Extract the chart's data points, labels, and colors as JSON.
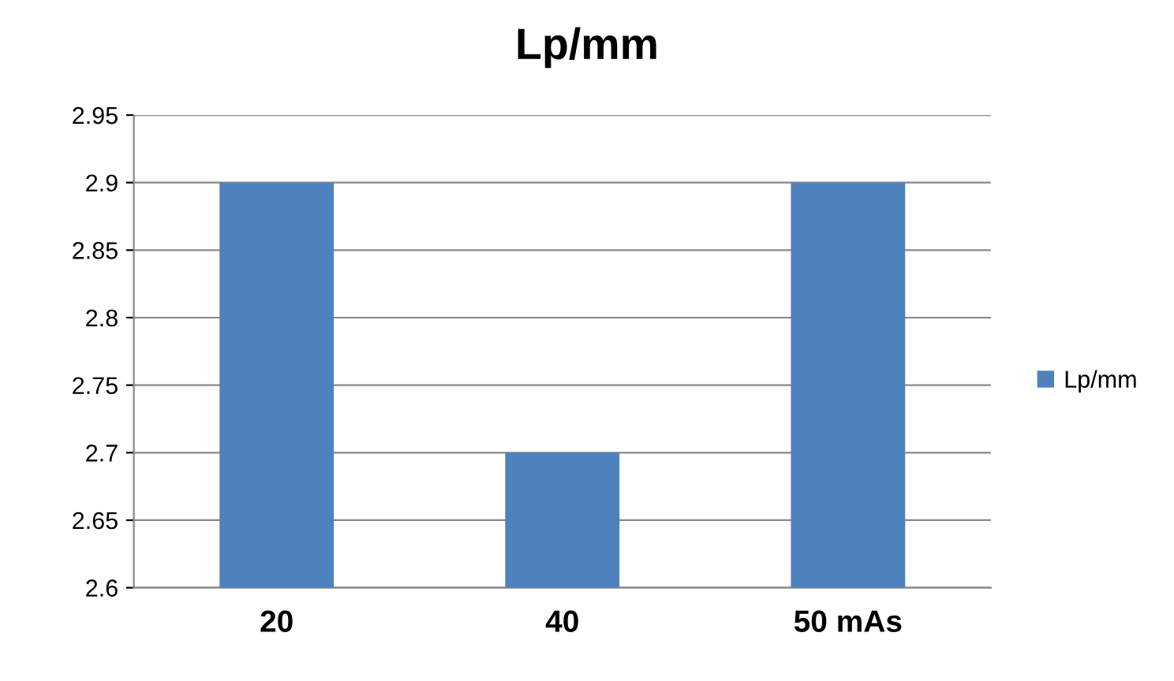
{
  "chart_data": {
    "type": "bar",
    "title": "Lp/mm",
    "categories": [
      "20",
      "40",
      "50 mAs"
    ],
    "series": [
      {
        "name": "Lp/mm",
        "color": "#4f81bd",
        "values": [
          2.9,
          2.7,
          2.9
        ]
      }
    ],
    "ylim": [
      2.6,
      2.95
    ],
    "yticks": [
      2.6,
      2.65,
      2.7,
      2.75,
      2.8,
      2.85,
      2.9,
      2.95
    ],
    "grid": "y",
    "legend": "right"
  }
}
